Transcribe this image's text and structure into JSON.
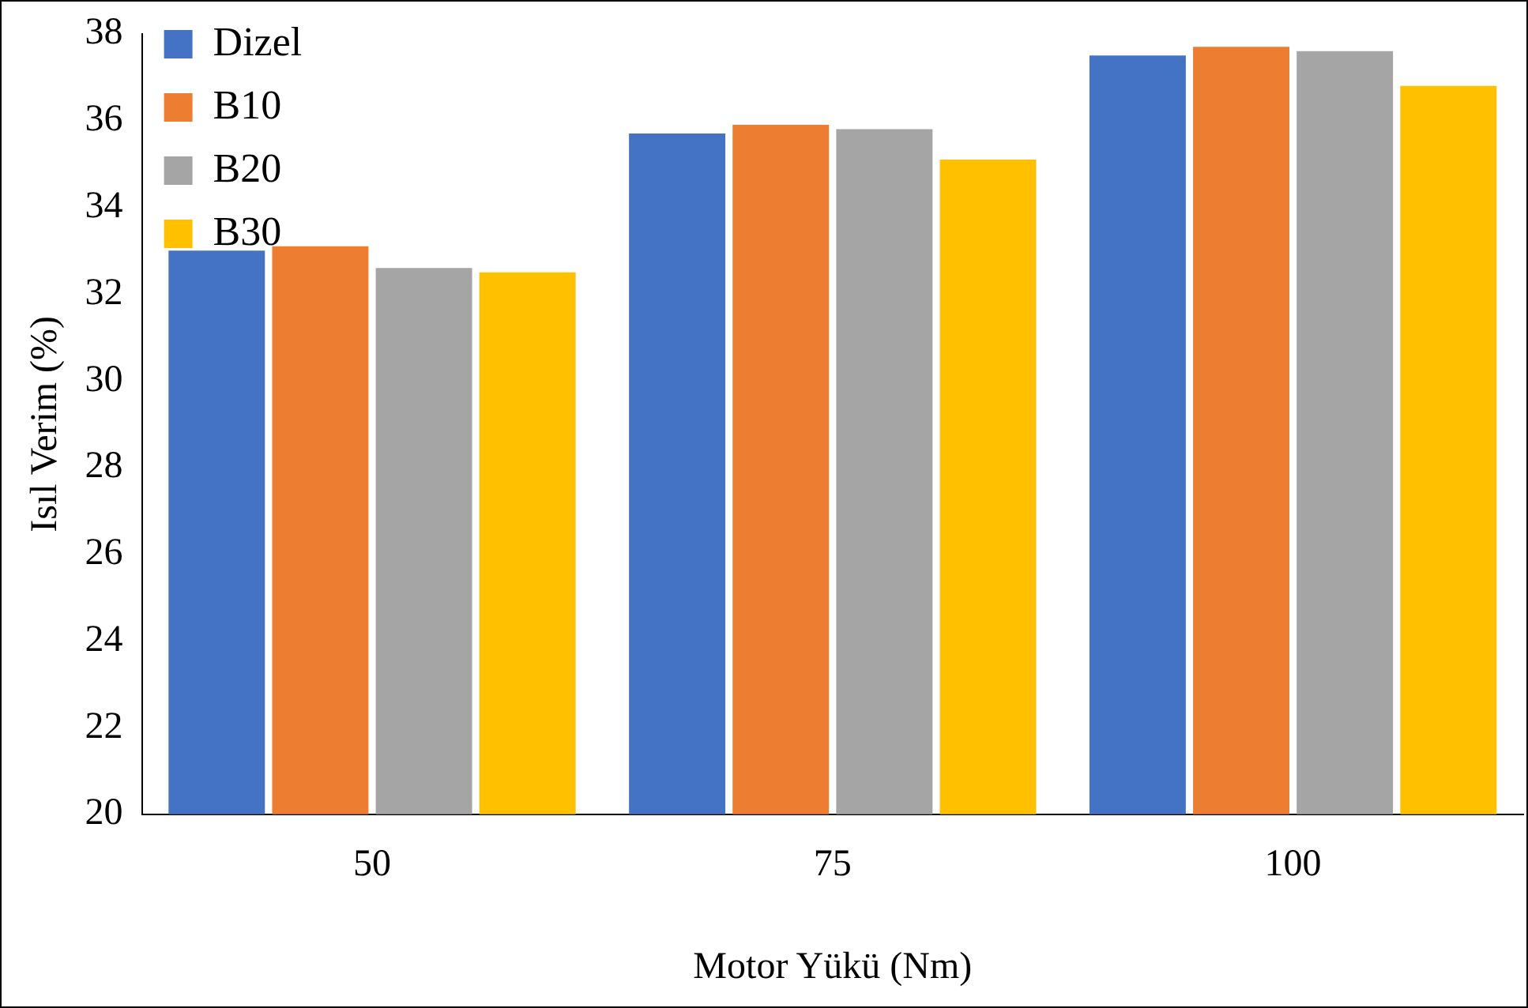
{
  "chart_data": {
    "type": "bar",
    "xlabel": "Motor Yükü (Nm)",
    "ylabel": "Isıl Verim (%)",
    "categories": [
      "50",
      "75",
      "100"
    ],
    "series": [
      {
        "name": "Dizel",
        "color": "#4472c4",
        "values": [
          33.0,
          35.7,
          37.5
        ]
      },
      {
        "name": "B10",
        "color": "#ed7d31",
        "values": [
          33.1,
          35.9,
          37.7
        ]
      },
      {
        "name": "B20",
        "color": "#a5a5a5",
        "values": [
          32.6,
          35.8,
          37.6
        ]
      },
      {
        "name": "B30",
        "color": "#ffc000",
        "values": [
          32.5,
          35.1,
          36.8
        ]
      }
    ],
    "ylim": [
      20,
      38
    ],
    "yticks": [
      20,
      22,
      24,
      26,
      28,
      30,
      32,
      34,
      36,
      38
    ],
    "grid": false,
    "legend": "top left"
  }
}
